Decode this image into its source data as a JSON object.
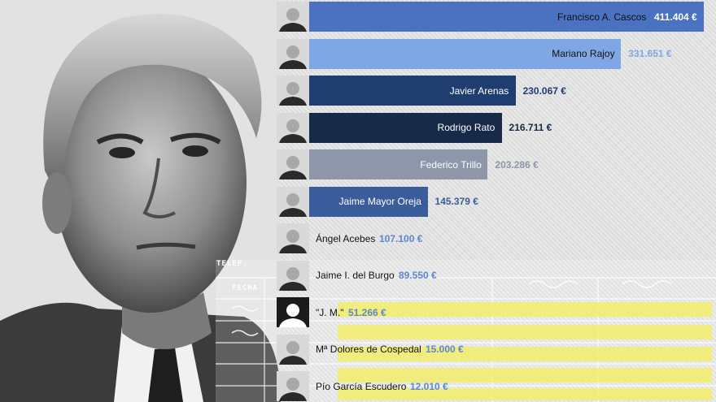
{
  "chart_data": {
    "type": "bar",
    "orientation": "horizontal",
    "title": "",
    "xlabel": "",
    "ylabel": "",
    "categories": [
      "Francisco A. Cascos",
      "Mariano Rajoy",
      "Javier Arenas",
      "Rodrigo Rato",
      "Federico Trillo",
      "Jaime Mayor Oreja",
      "Ángel Acebes",
      "Jaime I. del Burgo",
      "\"J. M.\"",
      "Mª Dolores de Cospedal",
      "Pío García Escudero"
    ],
    "values": [
      411404,
      331651,
      230067,
      216711,
      203286,
      145379,
      107100,
      89550,
      51266,
      15000,
      12010
    ],
    "value_labels": [
      "411.404 €",
      "331.651 €",
      "230.067 €",
      "216.711 €",
      "203.286 €",
      "145.379 €",
      "107.100 €",
      "89.550 €",
      "51.266 €",
      "15.000 €",
      "12.010 €"
    ],
    "unit": "€",
    "bar_colors": [
      "#4a72c0",
      "#7fa7e6",
      "#1f3d6e",
      "#172a47",
      "#8d97a9",
      "#3a5c9a",
      "#5b87d2",
      "#5b87d2",
      "#5b87d2",
      "#5b87d2",
      "#5b87d2"
    ],
    "name_colors": [
      "#111111",
      "#111111",
      "#ffffff",
      "#ffffff",
      "#ffffff",
      "#ffffff",
      "#111111",
      "#111111",
      "#111111",
      "#111111",
      "#111111"
    ],
    "value_colors": [
      "#ffffff",
      "#7fa7e6",
      "#1f3d6e",
      "#172a47",
      "#8d97a9",
      "#3a5c9a",
      "#5b87d2",
      "#5b87d2",
      "#5b87d2",
      "#5b87d2",
      "#5b87d2"
    ]
  },
  "document": {
    "label_telef": "TELEF.",
    "label_fecha": "FECHA",
    "highlight_color": "#f4ef5a"
  }
}
